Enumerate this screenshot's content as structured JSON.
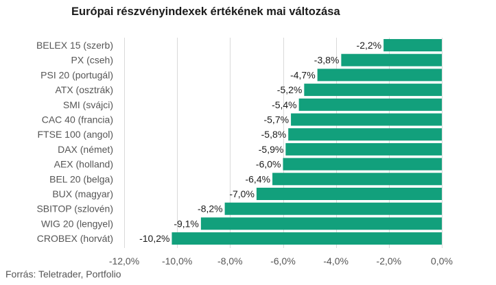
{
  "chart_data": {
    "type": "bar",
    "orientation": "horizontal",
    "title": "Európai részvényindexek értékének mai változása",
    "categories": [
      "BELEX 15 (szerb)",
      "PX (cseh)",
      "PSI 20 (portugál)",
      "ATX (osztrák)",
      "SMI (svájci)",
      "CAC 40 (francia)",
      "FTSE 100 (angol)",
      "DAX (német)",
      "AEX (holland)",
      "BEL 20 (belga)",
      "BUX (magyar)",
      "SBITOP (szlovén)",
      "WIG 20 (lengyel)",
      "CROBEX (horvát)"
    ],
    "values": [
      -2.2,
      -3.8,
      -4.7,
      -5.2,
      -5.4,
      -5.7,
      -5.8,
      -5.9,
      -6.0,
      -6.4,
      -7.0,
      -8.2,
      -9.1,
      -10.2
    ],
    "value_labels": [
      "-2,2%",
      "-3,8%",
      "-4,7%",
      "-5,2%",
      "-5,4%",
      "-5,7%",
      "-5,8%",
      "-5,9%",
      "-6,0%",
      "-6,4%",
      "-7,0%",
      "-8,2%",
      "-9,1%",
      "-10,2%"
    ],
    "xlim": [
      -12.0,
      0.0
    ],
    "x_ticks": [
      -12,
      -10,
      -8,
      -6,
      -4,
      -2,
      0
    ],
    "x_tick_labels": [
      "-12,0%",
      "-10,0%",
      "-8,0%",
      "-6,0%",
      "-4,0%",
      "-2,0%",
      "0,0%"
    ],
    "grid": "vertical",
    "bar_color": "#12a07c",
    "grid_color": "#d9d9d9"
  },
  "source": "Forrás: Teletrader, Portfolio"
}
